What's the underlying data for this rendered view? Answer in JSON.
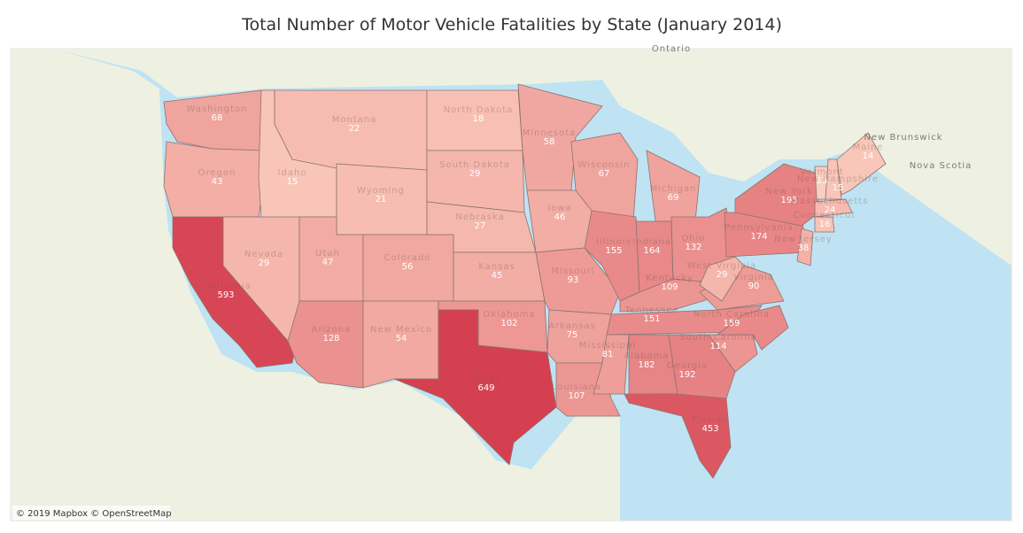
{
  "title": "Total Number of Motor Vehicle Fatalities by State (January 2014)",
  "attribution": "© 2019 Mapbox © OpenStreetMap",
  "map_labels": [
    "Ontario",
    "New Brunswick",
    "Nova Scotia"
  ],
  "states": [
    {
      "name": "Washington",
      "value": 68
    },
    {
      "name": "Oregon",
      "value": 43
    },
    {
      "name": "California",
      "value": 593
    },
    {
      "name": "Nevada",
      "value": 29
    },
    {
      "name": "Idaho",
      "value": 15
    },
    {
      "name": "Montana",
      "value": 22
    },
    {
      "name": "Wyoming",
      "value": 21
    },
    {
      "name": "Utah",
      "value": 47
    },
    {
      "name": "Arizona",
      "value": 128
    },
    {
      "name": "Colorado",
      "value": 56
    },
    {
      "name": "New Mexico",
      "value": 54
    },
    {
      "name": "North Dakota",
      "value": 18
    },
    {
      "name": "South Dakota",
      "value": 29
    },
    {
      "name": "Nebraska",
      "value": 27
    },
    {
      "name": "Kansas",
      "value": 45
    },
    {
      "name": "Oklahoma",
      "value": 102
    },
    {
      "name": "Texas",
      "value": 649
    },
    {
      "name": "Minnesota",
      "value": 58
    },
    {
      "name": "Iowa",
      "value": 46
    },
    {
      "name": "Missouri",
      "value": 93
    },
    {
      "name": "Arkansas",
      "value": 75
    },
    {
      "name": "Louisiana",
      "value": 107
    },
    {
      "name": "Wisconsin",
      "value": 67
    },
    {
      "name": "Illinois",
      "value": 155
    },
    {
      "name": "Michigan",
      "value": 69
    },
    {
      "name": "Indiana",
      "value": 164
    },
    {
      "name": "Ohio",
      "value": 132
    },
    {
      "name": "Kentucky",
      "value": 109
    },
    {
      "name": "Tennessee",
      "value": 151
    },
    {
      "name": "Mississippi",
      "value": 81
    },
    {
      "name": "Alabama",
      "value": 182
    },
    {
      "name": "Georgia",
      "value": 192
    },
    {
      "name": "Florida",
      "value": 453
    },
    {
      "name": "South Carolina",
      "value": 114
    },
    {
      "name": "North Carolina",
      "value": 159
    },
    {
      "name": "Virginia",
      "value": 90
    },
    {
      "name": "West Virginia",
      "value": 29
    },
    {
      "name": "Pennsylvania",
      "value": 174
    },
    {
      "name": "New York",
      "value": 195
    },
    {
      "name": "Vermont",
      "value": 13
    },
    {
      "name": "New Hampshire",
      "value": 15
    },
    {
      "name": "Maine",
      "value": 14
    },
    {
      "name": "Massachusetts",
      "value": 24
    },
    {
      "name": "Connecticut",
      "value": 16
    },
    {
      "name": "New Jersey",
      "value": 38
    }
  ]
}
